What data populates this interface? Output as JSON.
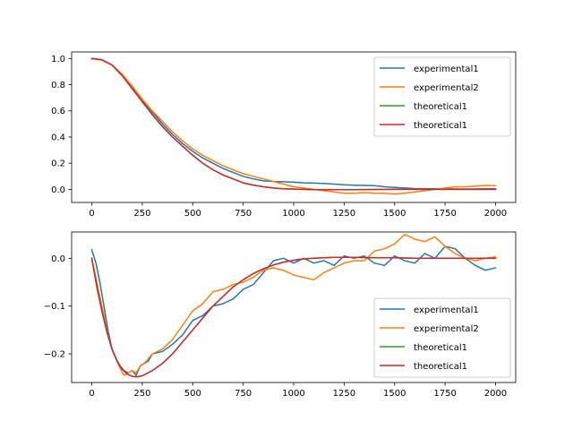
{
  "chart_data": [
    {
      "type": "line",
      "title": "",
      "xlabel": "",
      "ylabel": "",
      "xlim": [
        -100,
        2100
      ],
      "ylim": [
        -0.1,
        1.05
      ],
      "xticks": [
        0,
        250,
        500,
        750,
        1000,
        1250,
        1500,
        1750,
        2000
      ],
      "xtick_labels": [
        "0",
        "250",
        "500",
        "750",
        "1000",
        "1250",
        "1500",
        "1750",
        "2000"
      ],
      "yticks": [
        0.0,
        0.2,
        0.4,
        0.6,
        0.8,
        1.0
      ],
      "ytick_labels": [
        "0.0",
        "0.2",
        "0.4",
        "0.6",
        "0.8",
        "1.0"
      ],
      "grid": false,
      "legend_position": "upper right",
      "series": [
        {
          "name": "experimental1",
          "color": "#1f77b4",
          "x": [
            0,
            50,
            100,
            150,
            200,
            250,
            300,
            350,
            400,
            450,
            500,
            550,
            600,
            650,
            700,
            750,
            800,
            850,
            900,
            950,
            1000,
            1050,
            1100,
            1150,
            1200,
            1250,
            1300,
            1350,
            1400,
            1450,
            1500,
            1550,
            1600,
            1650,
            1700,
            1750,
            1800,
            1850,
            1900,
            1950,
            2000
          ],
          "y": [
            1.0,
            0.99,
            0.95,
            0.87,
            0.78,
            0.68,
            0.59,
            0.5,
            0.42,
            0.35,
            0.29,
            0.24,
            0.2,
            0.16,
            0.13,
            0.1,
            0.08,
            0.065,
            0.06,
            0.058,
            0.055,
            0.05,
            0.048,
            0.045,
            0.04,
            0.035,
            0.032,
            0.03,
            0.028,
            0.02,
            0.015,
            0.01,
            0.006,
            0.005,
            0.004,
            0.004,
            0.003,
            0.003,
            0.003,
            0.004,
            0.005
          ]
        },
        {
          "name": "experimental2",
          "color": "#ff7f0e",
          "x": [
            0,
            50,
            100,
            150,
            200,
            250,
            300,
            350,
            400,
            450,
            500,
            550,
            600,
            650,
            700,
            750,
            800,
            850,
            900,
            950,
            1000,
            1050,
            1100,
            1150,
            1200,
            1250,
            1300,
            1350,
            1400,
            1450,
            1500,
            1550,
            1600,
            1650,
            1700,
            1750,
            1800,
            1850,
            1900,
            1950,
            2000
          ],
          "y": [
            1.0,
            0.99,
            0.95,
            0.88,
            0.79,
            0.69,
            0.6,
            0.52,
            0.44,
            0.37,
            0.31,
            0.26,
            0.22,
            0.18,
            0.15,
            0.12,
            0.1,
            0.08,
            0.06,
            0.04,
            0.02,
            0.01,
            0.0,
            -0.01,
            -0.02,
            -0.03,
            -0.03,
            -0.025,
            -0.03,
            -0.03,
            -0.035,
            -0.03,
            -0.02,
            -0.01,
            0.0,
            0.01,
            0.02,
            0.02,
            0.025,
            0.03,
            0.028
          ]
        },
        {
          "name": "theoretical1",
          "color": "#2ca02c",
          "x": [
            0,
            50,
            100,
            150,
            200,
            250,
            300,
            350,
            400,
            450,
            500,
            550,
            600,
            650,
            700,
            750,
            800,
            850,
            900,
            950,
            1000,
            1050,
            1100,
            1150,
            1200,
            1300,
            1400,
            1500,
            1600,
            1700,
            1800,
            1900,
            2000
          ],
          "y": [
            1.0,
            0.99,
            0.95,
            0.87,
            0.77,
            0.67,
            0.57,
            0.48,
            0.4,
            0.33,
            0.26,
            0.2,
            0.15,
            0.11,
            0.08,
            0.05,
            0.033,
            0.02,
            0.01,
            0.005,
            0.002,
            0.0,
            -0.002,
            -0.003,
            -0.003,
            -0.002,
            -0.001,
            0.0,
            0.0,
            0.0,
            0.0,
            0.0,
            0.0
          ]
        },
        {
          "name": "theoretical1",
          "color": "#d62728",
          "x": [
            0,
            50,
            100,
            150,
            200,
            250,
            300,
            350,
            400,
            450,
            500,
            550,
            600,
            650,
            700,
            750,
            800,
            850,
            900,
            950,
            1000,
            1050,
            1100,
            1150,
            1200,
            1300,
            1400,
            1500,
            1600,
            1700,
            1800,
            1900,
            2000
          ],
          "y": [
            1.0,
            0.99,
            0.95,
            0.87,
            0.77,
            0.67,
            0.57,
            0.48,
            0.4,
            0.33,
            0.26,
            0.2,
            0.15,
            0.11,
            0.08,
            0.05,
            0.033,
            0.02,
            0.01,
            0.005,
            0.002,
            0.0,
            -0.002,
            -0.003,
            -0.003,
            -0.002,
            -0.001,
            0.0,
            0.0,
            0.0,
            0.0,
            0.0,
            0.0
          ]
        }
      ]
    },
    {
      "type": "line",
      "title": "",
      "xlabel": "",
      "ylabel": "",
      "xlim": [
        -100,
        2100
      ],
      "ylim": [
        -0.26,
        0.055
      ],
      "xticks": [
        0,
        250,
        500,
        750,
        1000,
        1250,
        1500,
        1750,
        2000
      ],
      "xtick_labels": [
        "0",
        "250",
        "500",
        "750",
        "1000",
        "1250",
        "1500",
        "1750",
        "2000"
      ],
      "yticks": [
        -0.2,
        -0.1,
        0.0
      ],
      "ytick_labels": [
        "−0.2",
        "−0.1",
        "0.0"
      ],
      "grid": false,
      "legend_position": "lower right",
      "series": [
        {
          "name": "experimental1",
          "color": "#1f77b4",
          "x": [
            0,
            20,
            40,
            60,
            80,
            100,
            120,
            140,
            160,
            180,
            200,
            220,
            240,
            260,
            280,
            300,
            350,
            400,
            450,
            500,
            550,
            600,
            650,
            700,
            750,
            800,
            850,
            900,
            950,
            1000,
            1050,
            1100,
            1150,
            1200,
            1250,
            1300,
            1350,
            1400,
            1450,
            1500,
            1550,
            1600,
            1650,
            1700,
            1750,
            1800,
            1850,
            1900,
            1950,
            2000
          ],
          "y": [
            0.018,
            -0.01,
            -0.05,
            -0.1,
            -0.15,
            -0.19,
            -0.21,
            -0.225,
            -0.235,
            -0.24,
            -0.235,
            -0.245,
            -0.225,
            -0.22,
            -0.215,
            -0.2,
            -0.195,
            -0.18,
            -0.16,
            -0.13,
            -0.12,
            -0.1,
            -0.095,
            -0.085,
            -0.065,
            -0.055,
            -0.03,
            -0.005,
            0.0,
            -0.01,
            0.0,
            -0.01,
            -0.005,
            -0.015,
            0.005,
            0.0,
            0.005,
            -0.01,
            -0.015,
            0.005,
            -0.005,
            -0.01,
            0.01,
            0.0,
            0.025,
            0.02,
            0.0,
            -0.015,
            -0.025,
            -0.02
          ]
        },
        {
          "name": "experimental2",
          "color": "#ff7f0e",
          "x": [
            0,
            20,
            40,
            60,
            80,
            100,
            120,
            140,
            160,
            180,
            200,
            220,
            240,
            260,
            280,
            300,
            350,
            400,
            450,
            500,
            550,
            600,
            650,
            700,
            750,
            800,
            850,
            900,
            950,
            1000,
            1050,
            1100,
            1150,
            1200,
            1250,
            1300,
            1350,
            1400,
            1450,
            1500,
            1550,
            1600,
            1650,
            1700,
            1750,
            1800,
            1850,
            1900,
            1950,
            2000
          ],
          "y": [
            0.0,
            -0.04,
            -0.08,
            -0.12,
            -0.16,
            -0.19,
            -0.21,
            -0.23,
            -0.245,
            -0.24,
            -0.235,
            -0.24,
            -0.225,
            -0.22,
            -0.21,
            -0.2,
            -0.19,
            -0.17,
            -0.14,
            -0.11,
            -0.095,
            -0.07,
            -0.065,
            -0.055,
            -0.05,
            -0.04,
            -0.025,
            -0.02,
            -0.025,
            -0.035,
            -0.04,
            -0.045,
            -0.03,
            -0.02,
            -0.01,
            -0.005,
            -0.005,
            0.015,
            0.02,
            0.03,
            0.05,
            0.04,
            0.035,
            0.045,
            0.025,
            0.01,
            0.0,
            -0.005,
            0.0,
            0.003
          ]
        },
        {
          "name": "theoretical1",
          "color": "#2ca02c",
          "x": [
            0,
            25,
            50,
            75,
            100,
            125,
            150,
            175,
            200,
            225,
            250,
            300,
            350,
            400,
            450,
            500,
            550,
            600,
            650,
            700,
            750,
            800,
            850,
            900,
            950,
            1000,
            1050,
            1100,
            1150,
            1200,
            1300,
            1400,
            1500,
            1600,
            1700,
            1800,
            1900,
            2000
          ],
          "y": [
            0.0,
            -0.06,
            -0.11,
            -0.155,
            -0.19,
            -0.215,
            -0.232,
            -0.242,
            -0.247,
            -0.248,
            -0.246,
            -0.235,
            -0.22,
            -0.2,
            -0.175,
            -0.15,
            -0.125,
            -0.1,
            -0.08,
            -0.06,
            -0.045,
            -0.032,
            -0.022,
            -0.014,
            -0.008,
            -0.004,
            -0.001,
            0.0,
            0.001,
            0.002,
            0.002,
            0.001,
            0.001,
            0.0,
            0.0,
            0.0,
            0.0,
            0.0
          ]
        },
        {
          "name": "theoretical1",
          "color": "#d62728",
          "x": [
            0,
            25,
            50,
            75,
            100,
            125,
            150,
            175,
            200,
            225,
            250,
            300,
            350,
            400,
            450,
            500,
            550,
            600,
            650,
            700,
            750,
            800,
            850,
            900,
            950,
            1000,
            1050,
            1100,
            1150,
            1200,
            1300,
            1400,
            1500,
            1600,
            1700,
            1800,
            1900,
            2000
          ],
          "y": [
            0.0,
            -0.06,
            -0.11,
            -0.155,
            -0.19,
            -0.215,
            -0.232,
            -0.242,
            -0.247,
            -0.248,
            -0.246,
            -0.235,
            -0.22,
            -0.2,
            -0.175,
            -0.15,
            -0.125,
            -0.1,
            -0.08,
            -0.06,
            -0.045,
            -0.032,
            -0.022,
            -0.014,
            -0.008,
            -0.004,
            -0.001,
            0.0,
            0.001,
            0.002,
            0.002,
            0.001,
            0.001,
            0.0,
            0.0,
            0.0,
            0.0,
            0.0
          ]
        }
      ]
    }
  ]
}
